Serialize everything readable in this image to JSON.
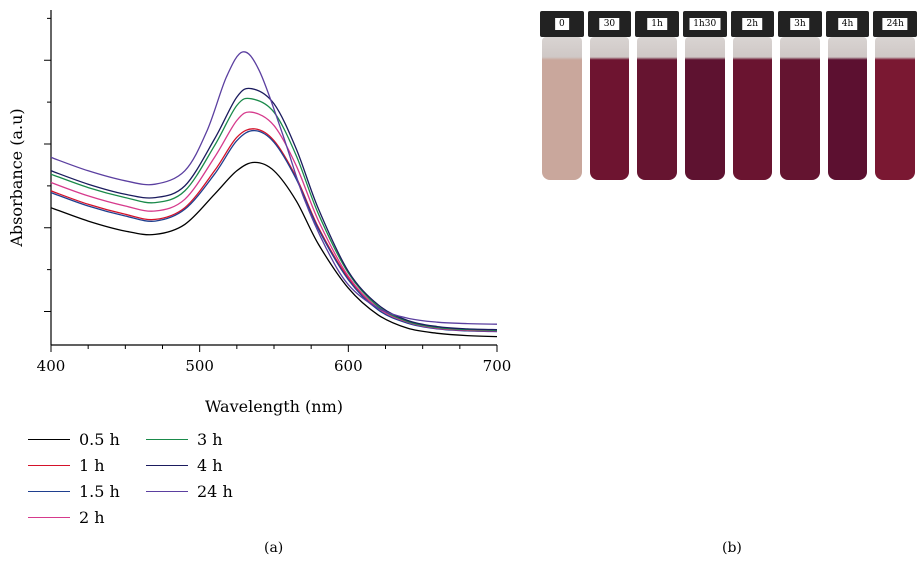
{
  "chart_data": {
    "type": "line",
    "xlabel": "Wavelength (nm)",
    "ylabel": "Absorbance (a.u)",
    "xlim": [
      400,
      700
    ],
    "ylim": [
      0.0,
      1.0
    ],
    "x_ticks": [
      400,
      500,
      600,
      700
    ],
    "x_tick_labels": [
      "400",
      "500",
      "600",
      "700"
    ],
    "y_ticks_unlabeled": [
      0.1,
      0.35,
      0.6,
      0.85
    ],
    "grid": false,
    "legend_position": "bottom-left, two columns",
    "series": [
      {
        "name": "0.5 h",
        "color": "#000000",
        "peak_nm": 537,
        "x": [
          400,
          425,
          450,
          470,
          490,
          510,
          525,
          537,
          550,
          565,
          580,
          600,
          620,
          640,
          660,
          680,
          700
        ],
        "y": [
          0.41,
          0.37,
          0.34,
          0.33,
          0.36,
          0.45,
          0.52,
          0.545,
          0.52,
          0.43,
          0.3,
          0.17,
          0.09,
          0.05,
          0.035,
          0.028,
          0.025
        ]
      },
      {
        "name": "1 h",
        "color": "#d4122a",
        "peak_nm": 537,
        "x": [
          400,
          425,
          450,
          470,
          490,
          510,
          525,
          537,
          550,
          565,
          580,
          600,
          620,
          640,
          660,
          680,
          700
        ],
        "y": [
          0.46,
          0.42,
          0.39,
          0.375,
          0.41,
          0.52,
          0.62,
          0.645,
          0.61,
          0.5,
          0.35,
          0.2,
          0.11,
          0.07,
          0.05,
          0.045,
          0.042
        ]
      },
      {
        "name": "1.5 h",
        "color": "#1f3f8f",
        "peak_nm": 537,
        "x": [
          400,
          425,
          450,
          470,
          490,
          510,
          525,
          537,
          550,
          565,
          580,
          600,
          620,
          640,
          660,
          680,
          700
        ],
        "y": [
          0.455,
          0.415,
          0.385,
          0.37,
          0.405,
          0.51,
          0.61,
          0.64,
          0.605,
          0.495,
          0.345,
          0.195,
          0.105,
          0.065,
          0.048,
          0.042,
          0.04
        ]
      },
      {
        "name": "2 h",
        "color": "#d63a8c",
        "peak_nm": 535,
        "x": [
          400,
          425,
          450,
          470,
          490,
          510,
          525,
          535,
          550,
          565,
          580,
          600,
          620,
          640,
          660,
          680,
          700
        ],
        "y": [
          0.485,
          0.445,
          0.415,
          0.4,
          0.435,
          0.56,
          0.67,
          0.695,
          0.655,
          0.535,
          0.37,
          0.205,
          0.11,
          0.068,
          0.05,
          0.044,
          0.042
        ]
      },
      {
        "name": "3 h",
        "color": "#1a8a4a",
        "peak_nm": 535,
        "x": [
          400,
          425,
          450,
          470,
          490,
          510,
          525,
          535,
          550,
          565,
          580,
          600,
          620,
          640,
          660,
          680,
          700
        ],
        "y": [
          0.51,
          0.47,
          0.44,
          0.425,
          0.46,
          0.595,
          0.715,
          0.735,
          0.695,
          0.565,
          0.39,
          0.215,
          0.115,
          0.07,
          0.052,
          0.046,
          0.044
        ]
      },
      {
        "name": "4 h",
        "color": "#1b1b5e",
        "peak_nm": 535,
        "x": [
          400,
          425,
          450,
          470,
          490,
          510,
          525,
          535,
          550,
          565,
          580,
          600,
          620,
          640,
          660,
          680,
          700
        ],
        "y": [
          0.52,
          0.48,
          0.45,
          0.44,
          0.475,
          0.615,
          0.74,
          0.765,
          0.72,
          0.585,
          0.405,
          0.22,
          0.12,
          0.073,
          0.055,
          0.048,
          0.046
        ]
      },
      {
        "name": "24 h",
        "color": "#5b3fa0",
        "peak_nm": 529,
        "x": [
          400,
          425,
          450,
          470,
          490,
          505,
          518,
          529,
          540,
          555,
          570,
          585,
          600,
          620,
          640,
          660,
          680,
          700
        ],
        "y": [
          0.56,
          0.52,
          0.49,
          0.48,
          0.52,
          0.64,
          0.8,
          0.875,
          0.82,
          0.64,
          0.44,
          0.29,
          0.18,
          0.11,
          0.08,
          0.068,
          0.064,
          0.062
        ]
      }
    ]
  },
  "captions": {
    "a": "(a)",
    "b": "(b)"
  },
  "photo": {
    "vials": [
      {
        "label": "0",
        "liquid": "#c9a79c"
      },
      {
        "label": "30",
        "liquid": "#6e1430"
      },
      {
        "label": "1h",
        "liquid": "#661430"
      },
      {
        "label": "1h30",
        "liquid": "#5e1230"
      },
      {
        "label": "2h",
        "liquid": "#6a1430"
      },
      {
        "label": "3h",
        "liquid": "#641430"
      },
      {
        "label": "4h",
        "liquid": "#5c1030"
      },
      {
        "label": "24h",
        "liquid": "#7a1832"
      }
    ]
  }
}
